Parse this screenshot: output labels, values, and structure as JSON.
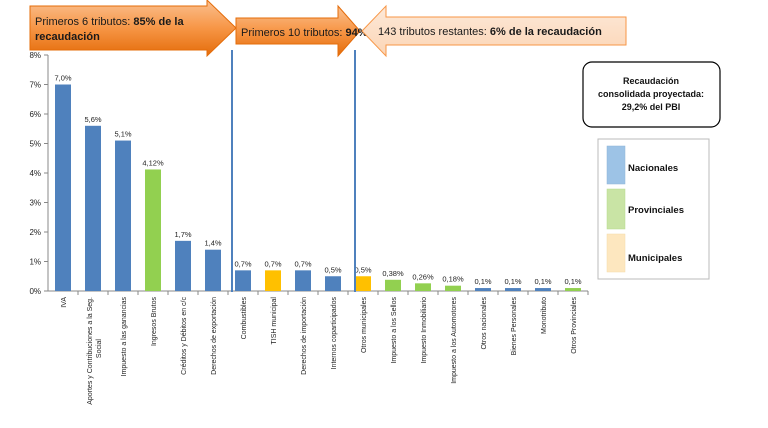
{
  "banners": {
    "first6": {
      "text": "Primeros 6 tributos: ",
      "bold": "85% de la",
      "line2": "recaudación"
    },
    "first10": {
      "text": "Primeros 10 tributos: ",
      "bold": "94%"
    },
    "rest": {
      "text": "143 tributos restantes: ",
      "bold": "6% de la recaudación"
    }
  },
  "summary_box": {
    "line1": "Recaudación",
    "line2": "consolidada proyectada:",
    "line3": "29,2% del PBI"
  },
  "legend": [
    {
      "label": "Nacionales",
      "color": "#9dc3e6"
    },
    {
      "label": "Provinciales",
      "color": "#c9e4a5"
    },
    {
      "label": "Municipales",
      "color": "#fde7bf"
    }
  ],
  "colors": {
    "national": "#4f81bd",
    "provincial": "#92d050",
    "municipal": "#ffc000",
    "divider": "#4f81bd",
    "arrow_dark": "#f79646",
    "arrow_light": "#fbd5b5"
  },
  "chart_data": {
    "type": "bar",
    "ylim": [
      0,
      8
    ],
    "yticks": [
      "0%",
      "1%",
      "2%",
      "3%",
      "4%",
      "5%",
      "6%",
      "7%",
      "8%"
    ],
    "categories": [
      "IVA",
      "Aportes y Contribuciones a la Seg. Social",
      "Impuesto a las ganancias",
      "Ingresos Brutos",
      "Créditos y Débitos en c/c",
      "Derechos de exportación",
      "Combustibles",
      "TISH municipal",
      "Derechos de importación",
      "Internos coparticipados",
      "Otros municipales",
      "Impuesto a los Sellos",
      "Impuesto Inmobiliario",
      "Impuesto a los Automotores",
      "Otros nacionales",
      "Bienes Personales",
      "Monotributo",
      "Otros Provinciales"
    ],
    "values": [
      7.0,
      5.6,
      5.1,
      4.12,
      1.7,
      1.4,
      0.7,
      0.7,
      0.7,
      0.5,
      0.5,
      0.38,
      0.26,
      0.18,
      0.1,
      0.1,
      0.1,
      0.1
    ],
    "labels": [
      "7,0%",
      "5,6%",
      "5,1%",
      "4,12%",
      "1,7%",
      "1,4%",
      "0,7%",
      "0,7%",
      "0,7%",
      "0,5%",
      "0,5%",
      "0,38%",
      "0,26%",
      "0,18%",
      "0,1%",
      "0,1%",
      "0,1%",
      "0,1%"
    ],
    "level": [
      "national",
      "national",
      "national",
      "provincial",
      "national",
      "national",
      "national",
      "municipal",
      "national",
      "national",
      "municipal",
      "provincial",
      "provincial",
      "provincial",
      "national",
      "national",
      "national",
      "provincial"
    ]
  }
}
